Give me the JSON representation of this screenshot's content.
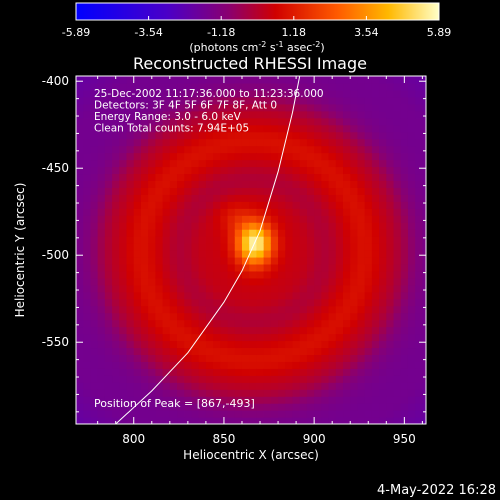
{
  "colorbar": {
    "ticks": [
      "-5.89",
      "-3.54",
      "-1.18",
      "1.18",
      "3.54",
      "5.89"
    ],
    "unit_label": {
      "prefix": "(photons cm",
      "exp1": "-2",
      "mid1": " s",
      "exp2": "-1",
      "mid2": " asec",
      "exp3": "-2",
      "suffix": ")"
    }
  },
  "chart_data": {
    "type": "heatmap",
    "title": "Reconstructed RHESSI Image",
    "xlabel": "Heliocentric X (arcsec)",
    "ylabel": "Heliocentric Y (arcsec)",
    "xlim": [
      768,
      962
    ],
    "ylim": [
      -597,
      -397
    ],
    "xticks": [
      800,
      850,
      900,
      950
    ],
    "yticks": [
      -400,
      -450,
      -500,
      -550
    ],
    "value_range": [
      -5.89,
      5.89
    ],
    "peak": {
      "x": 867,
      "y": -493
    },
    "annotations": [
      "25-Dec-2002 11:17:36.000 to 11:23:36.000",
      "Detectors: 3F 4F 5F 6F 7F 8F, Att 0",
      "Energy Range: 3.0 - 6.0 keV",
      "Clean    Total counts: 7.94E+05"
    ],
    "peak_label": "Position of Peak = [867,-493]",
    "limb_points": [
      [
        790,
        -597
      ],
      [
        810,
        -578
      ],
      [
        830,
        -556
      ],
      [
        850,
        -527
      ],
      [
        860,
        -509
      ],
      [
        870,
        -486
      ],
      [
        880,
        -452
      ],
      [
        888,
        -418
      ],
      [
        892,
        -397
      ]
    ]
  },
  "footer": {
    "date": "4-May-2022 16:28"
  }
}
